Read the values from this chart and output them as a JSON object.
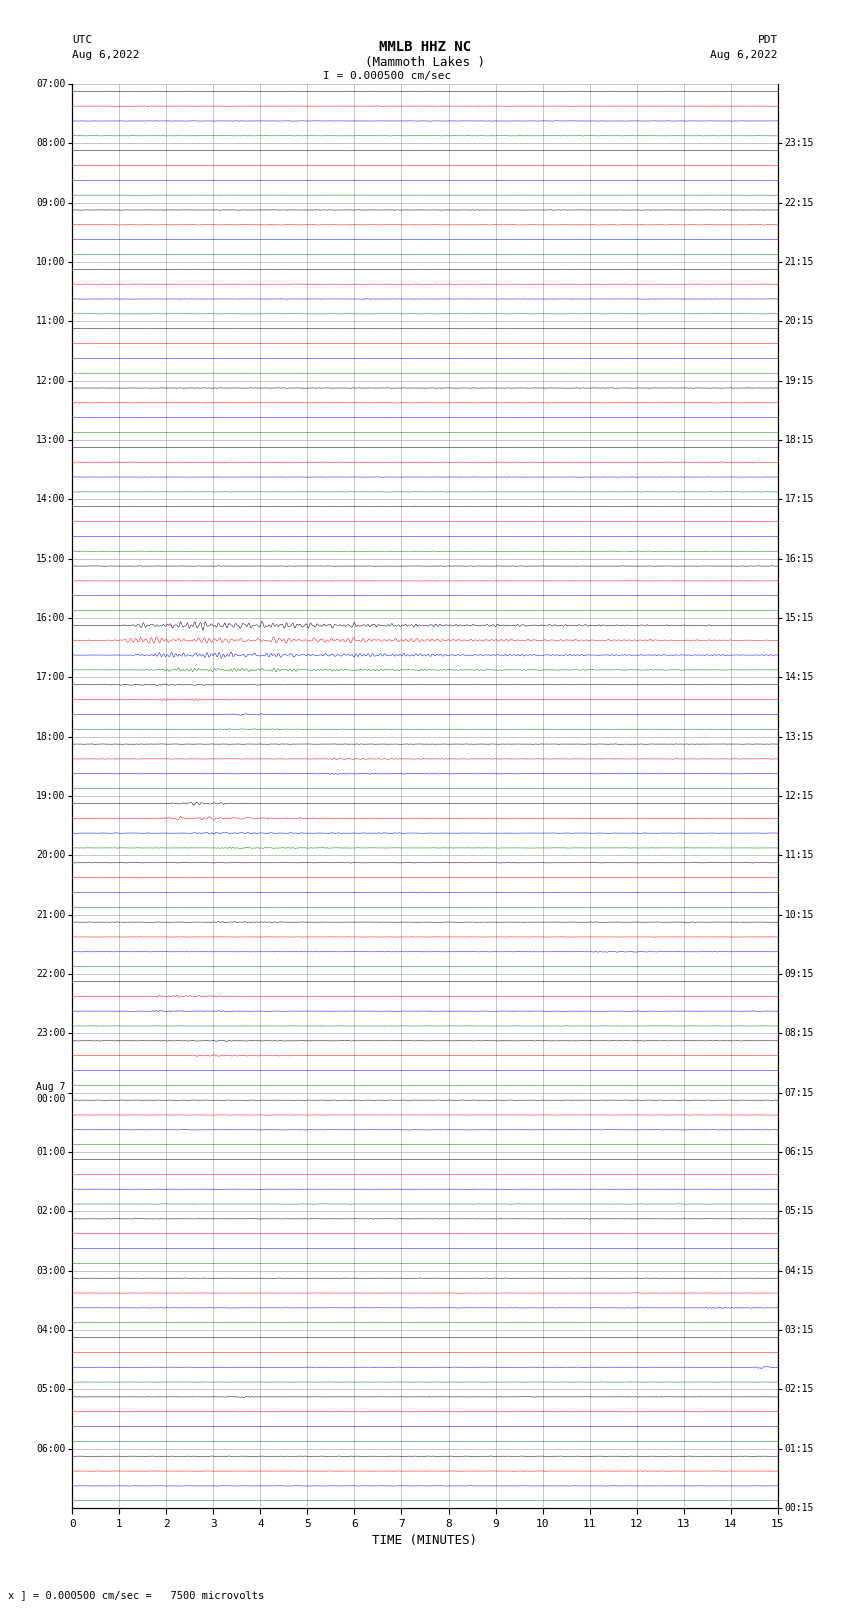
{
  "title_line1": "MMLB HHZ NC",
  "title_line2": "(Mammoth Lakes )",
  "title_line3": "I = 0.000500 cm/sec",
  "left_label_line1": "UTC",
  "left_label_line2": "Aug 6,2022",
  "right_label_line1": "PDT",
  "right_label_line2": "Aug 6,2022",
  "xlabel": "TIME (MINUTES)",
  "bottom_note": "x ] = 0.000500 cm/sec =   7500 microvolts",
  "utc_times": [
    "07:00",
    "08:00",
    "09:00",
    "10:00",
    "11:00",
    "12:00",
    "13:00",
    "14:00",
    "15:00",
    "16:00",
    "17:00",
    "18:00",
    "19:00",
    "20:00",
    "21:00",
    "22:00",
    "23:00",
    "Aug 7\n00:00",
    "01:00",
    "02:00",
    "03:00",
    "04:00",
    "05:00",
    "06:00"
  ],
  "pdt_times": [
    "00:15",
    "01:15",
    "02:15",
    "03:15",
    "04:15",
    "05:15",
    "06:15",
    "07:15",
    "08:15",
    "09:15",
    "10:15",
    "11:15",
    "12:15",
    "13:15",
    "14:15",
    "15:15",
    "16:15",
    "17:15",
    "18:15",
    "19:15",
    "20:15",
    "21:15",
    "22:15",
    "23:15"
  ],
  "n_rows": 24,
  "n_traces_per_row": 4,
  "trace_colors": [
    "black",
    "red",
    "blue",
    "green"
  ],
  "bg_color": "white",
  "plot_bg_color": "white",
  "grid_color": "#999999",
  "x_min": 0,
  "x_max": 15,
  "x_ticks": [
    0,
    1,
    2,
    3,
    4,
    5,
    6,
    7,
    8,
    9,
    10,
    11,
    12,
    13,
    14,
    15
  ]
}
